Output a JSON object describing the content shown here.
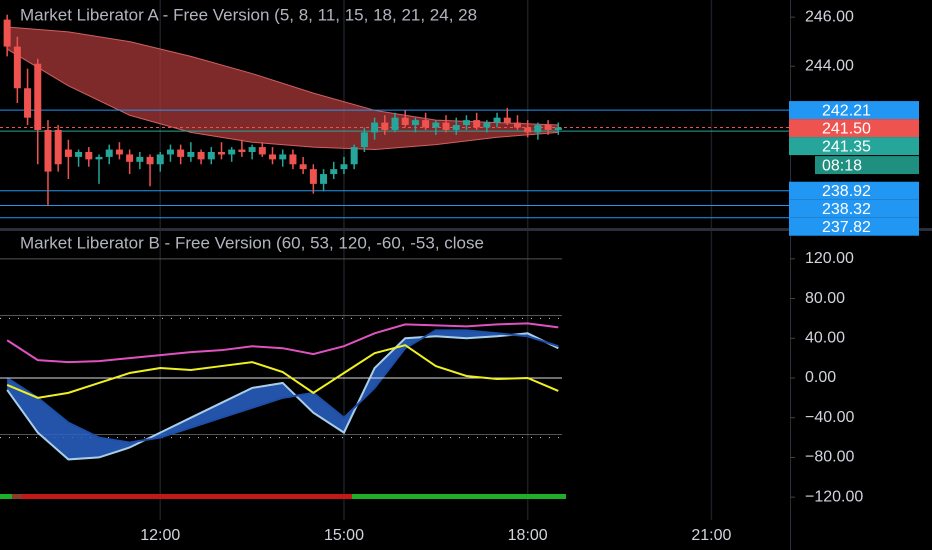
{
  "chart_data": [
    {
      "type": "candlestick",
      "title": "Market Liberator A - Free Version (5, 8, 11, 15, 18, 21, 24, 28",
      "x": [
        570,
        580,
        590,
        600,
        610,
        620,
        630,
        640,
        650,
        660,
        670,
        680,
        690,
        700,
        710,
        720,
        730,
        740,
        750,
        760,
        770,
        780,
        790,
        800,
        810,
        820,
        830,
        840,
        850,
        860,
        870,
        880,
        890,
        900,
        910,
        920,
        930,
        940,
        950,
        960,
        970,
        980,
        990,
        1000,
        1010,
        1020,
        1030,
        1040,
        1050,
        1060,
        1070,
        1080,
        1090,
        1100,
        1110
      ],
      "open": [
        245.9,
        244.8,
        243.1,
        244.1,
        241.4,
        241.4,
        240.6,
        240.3,
        240.5,
        240.2,
        240.3,
        240.6,
        240.4,
        240.1,
        240.3,
        240.0,
        240.4,
        240.6,
        240.3,
        240.5,
        240.2,
        240.5,
        240.4,
        240.6,
        240.5,
        240.7,
        240.4,
        240.2,
        240.4,
        240.0,
        239.8,
        239.2,
        239.6,
        239.8,
        240.0,
        240.7,
        241.3,
        241.7,
        241.4,
        241.9,
        241.6,
        241.8,
        241.5,
        241.7,
        241.4,
        241.6,
        241.8,
        241.5,
        241.7,
        241.9,
        241.7,
        241.5,
        241.3,
        241.6,
        241.4
      ],
      "high": [
        246.1,
        245.2,
        243.9,
        244.3,
        241.8,
        241.6,
        241.0,
        240.6,
        240.7,
        240.4,
        240.8,
        240.9,
        240.6,
        240.5,
        240.4,
        240.5,
        240.8,
        240.8,
        240.9,
        240.6,
        240.7,
        240.9,
        240.7,
        241.0,
        240.8,
        240.9,
        240.7,
        240.6,
        240.6,
        240.3,
        240.0,
        239.8,
        240.1,
        240.3,
        240.8,
        241.5,
        241.9,
        242.0,
        242.1,
        242.2,
        241.9,
        242.1,
        241.8,
        242.0,
        241.9,
        242.0,
        242.1,
        241.8,
        242.1,
        242.3,
        242.0,
        241.8,
        241.7,
        241.8,
        241.7
      ],
      "low": [
        244.4,
        242.5,
        241.6,
        240.0,
        238.3,
        239.7,
        239.4,
        239.9,
        239.9,
        239.2,
        240.0,
        240.2,
        239.6,
        239.8,
        239.1,
        239.7,
        240.1,
        240.0,
        240.1,
        240.0,
        240.0,
        240.2,
        240.1,
        240.3,
        240.2,
        240.3,
        240.0,
        239.9,
        239.8,
        239.6,
        238.8,
        238.9,
        239.4,
        239.6,
        239.8,
        240.5,
        241.0,
        241.2,
        241.3,
        241.5,
        241.3,
        241.4,
        241.2,
        241.3,
        241.2,
        241.4,
        241.4,
        241.3,
        241.5,
        241.6,
        241.4,
        241.1,
        241.0,
        241.2,
        241.2
      ],
      "close": [
        244.8,
        243.1,
        241.9,
        241.4,
        239.7,
        240.0,
        240.3,
        240.5,
        240.2,
        240.3,
        240.6,
        240.4,
        240.1,
        240.3,
        240.0,
        240.4,
        240.6,
        240.3,
        240.5,
        240.2,
        240.5,
        240.4,
        240.6,
        240.5,
        240.7,
        240.4,
        240.2,
        240.4,
        240.0,
        239.8,
        239.2,
        239.6,
        239.8,
        240.0,
        240.7,
        241.3,
        241.7,
        241.4,
        241.9,
        241.6,
        241.8,
        241.5,
        241.7,
        241.4,
        241.6,
        241.8,
        241.5,
        241.7,
        241.9,
        241.7,
        241.5,
        241.3,
        241.6,
        241.4,
        241.5
      ],
      "up_color": "#26a69a",
      "down_color": "#ef5350",
      "ribbon": {
        "color": "#a8383a",
        "x": [
          570,
          630,
          690,
          750,
          810,
          870,
          930,
          990,
          1050,
          1110
        ],
        "upper": [
          245.6,
          245.4,
          245.0,
          244.4,
          243.7,
          242.9,
          242.2,
          241.8,
          241.7,
          241.6
        ],
        "lower": [
          244.7,
          243.2,
          242.0,
          241.3,
          240.9,
          240.7,
          240.6,
          240.8,
          241.1,
          241.3
        ]
      },
      "price_lines": [
        {
          "value": 242.21,
          "color": "#2196f3"
        },
        {
          "value": 241.5,
          "label": "241.50",
          "color": "#ef5350"
        },
        {
          "value": 241.35,
          "color": "#26a69a"
        },
        {
          "value": 238.92,
          "color": "#2196f3"
        },
        {
          "value": 238.32,
          "color": "#2196f3"
        },
        {
          "value": 237.82,
          "color": "#2196f3"
        }
      ],
      "countdown": "08:18",
      "xlim": [
        563,
        1337
      ],
      "ylim": [
        237.4,
        246.7
      ],
      "yticks": [
        {
          "value": 246,
          "label": "246.00"
        },
        {
          "value": 244,
          "label": "244.00"
        }
      ]
    },
    {
      "type": "line",
      "title": "Market Liberator B - Free Version (60, 53, 120, -60, -53, close",
      "x": [
        570,
        600,
        630,
        660,
        690,
        720,
        750,
        780,
        810,
        840,
        870,
        900,
        930,
        960,
        990,
        1020,
        1050,
        1080,
        1110
      ],
      "cloud": {
        "color": "#2a63c8",
        "fast": [
          -12,
          -55,
          -82,
          -80,
          -70,
          -55,
          -40,
          -25,
          -10,
          -5,
          -35,
          -55,
          10,
          40,
          42,
          40,
          42,
          45,
          30
        ],
        "slow": [
          0,
          -20,
          -45,
          -60,
          -65,
          -60,
          -50,
          -40,
          -30,
          -20,
          -15,
          -40,
          -10,
          30,
          48,
          48,
          45,
          42,
          32
        ]
      },
      "series": [
        {
          "color": "#e052c0",
          "values": [
            38,
            18,
            16,
            17,
            20,
            23,
            26,
            28,
            32,
            30,
            24,
            32,
            45,
            54,
            53,
            52,
            54,
            55,
            51
          ]
        },
        {
          "color": "#f0f020",
          "values": [
            -7,
            -20,
            -15,
            -5,
            5,
            10,
            8,
            12,
            16,
            6,
            -15,
            5,
            25,
            33,
            12,
            2,
            -1,
            0,
            -13
          ]
        }
      ],
      "levels": [
        60,
        -60
      ],
      "xlim": [
        563,
        1337
      ],
      "xticks": [
        {
          "value": 720,
          "label": "12:00"
        },
        {
          "value": 900,
          "label": "15:00"
        },
        {
          "value": 1080,
          "label": "18:00"
        },
        {
          "value": 1260,
          "label": "21:00"
        }
      ],
      "ylim": [
        -143,
        147
      ],
      "yticks": [
        {
          "value": 120,
          "label": "120.00"
        },
        {
          "value": 80,
          "label": "80.00"
        },
        {
          "value": 40,
          "label": "40.00"
        },
        {
          "value": 0,
          "label": "0.00"
        },
        {
          "value": -40,
          "label": "−40.00"
        },
        {
          "value": -80,
          "label": "−80.00"
        },
        {
          "value": -120,
          "label": "−120.00"
        }
      ]
    }
  ]
}
